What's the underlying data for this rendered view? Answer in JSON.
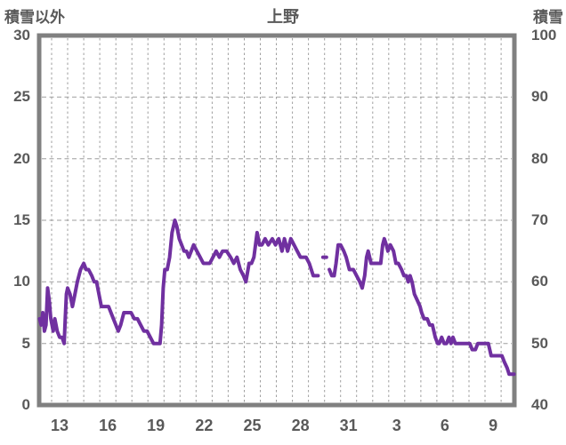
{
  "chart": {
    "title": "上野",
    "left_axis_label": "積雪以外",
    "right_axis_label": "積雪"
  },
  "chart_data": {
    "type": "line",
    "title": "上野",
    "background": "#ffffff",
    "border_color": "#808080",
    "text_color": "#595959",
    "grid": {
      "color": "#9e9e9e",
      "style": "dashed",
      "vertical_per_day": true
    },
    "x_axis": {
      "unit": "day of month",
      "note": "day numbers 13-31 are December, then 3/6/9 are January (continuous day index 34/37/40); one dashed gridline per day",
      "tick_labels": [
        "13",
        "16",
        "19",
        "22",
        "25",
        "28",
        "31",
        "3",
        "6",
        "9"
      ],
      "tick_days": [
        13,
        16,
        19,
        22,
        25,
        28,
        31,
        34,
        37,
        40
      ],
      "range_days": [
        12.224,
        41.827
      ]
    },
    "y_axis_left": {
      "label": "積雪以外",
      "range": [
        0,
        30
      ],
      "ticks": [
        0,
        5,
        10,
        15,
        20,
        25,
        30
      ],
      "tick_labels": [
        "0",
        "5",
        "10",
        "15",
        "20",
        "25",
        "30"
      ]
    },
    "y_axis_right": {
      "label": "積雪",
      "range": [
        40,
        100
      ],
      "ticks": [
        40,
        50,
        60,
        70,
        80,
        90,
        100
      ],
      "tick_labels": [
        "40",
        "50",
        "60",
        "70",
        "80",
        "90",
        "100"
      ]
    },
    "series": [
      {
        "name": "積雪 (snow depth)",
        "axis": "right",
        "unit": "cm",
        "color": "#7030a0",
        "line_width": 4,
        "segments": [
          [
            [
              12.25,
              54
            ],
            [
              12.35,
              53
            ],
            [
              12.45,
              55
            ],
            [
              12.55,
              52
            ],
            [
              12.65,
              53
            ],
            [
              12.75,
              59
            ],
            [
              12.85,
              57
            ],
            [
              12.95,
              54
            ],
            [
              13.1,
              52
            ],
            [
              13.2,
              54
            ],
            [
              13.35,
              52
            ],
            [
              13.5,
              51
            ],
            [
              13.65,
              51
            ],
            [
              13.78,
              50
            ],
            [
              13.85,
              54
            ],
            [
              13.92,
              58
            ],
            [
              14.0,
              59
            ],
            [
              14.15,
              58
            ],
            [
              14.3,
              56
            ],
            [
              14.45,
              58
            ],
            [
              14.6,
              60
            ],
            [
              14.8,
              62
            ],
            [
              15.0,
              63
            ],
            [
              15.15,
              62
            ],
            [
              15.3,
              62
            ],
            [
              15.5,
              61
            ],
            [
              15.65,
              60
            ],
            [
              15.8,
              60
            ],
            [
              15.95,
              58
            ],
            [
              16.1,
              56
            ],
            [
              16.3,
              56
            ],
            [
              16.55,
              56
            ],
            [
              16.7,
              55
            ],
            [
              16.85,
              54
            ],
            [
              17.0,
              53
            ],
            [
              17.15,
              52
            ],
            [
              17.3,
              53
            ],
            [
              17.5,
              55
            ],
            [
              17.75,
              55
            ],
            [
              17.95,
              55
            ],
            [
              18.15,
              54
            ],
            [
              18.35,
              54
            ],
            [
              18.55,
              53
            ],
            [
              18.75,
              52
            ],
            [
              18.95,
              52
            ],
            [
              19.15,
              51
            ],
            [
              19.35,
              50
            ],
            [
              19.55,
              50
            ],
            [
              19.75,
              50
            ],
            [
              19.85,
              53
            ],
            [
              19.95,
              59
            ],
            [
              20.05,
              62
            ],
            [
              20.2,
              62
            ],
            [
              20.35,
              64
            ],
            [
              20.5,
              68
            ],
            [
              20.68,
              70
            ],
            [
              20.8,
              69
            ],
            [
              20.95,
              67
            ],
            [
              21.1,
              66
            ],
            [
              21.25,
              65
            ],
            [
              21.4,
              65
            ],
            [
              21.55,
              64
            ],
            [
              21.7,
              65
            ],
            [
              21.85,
              66
            ],
            [
              22.05,
              65
            ],
            [
              22.25,
              64
            ],
            [
              22.45,
              63
            ],
            [
              22.65,
              63
            ],
            [
              22.85,
              63
            ],
            [
              23.05,
              64
            ],
            [
              23.25,
              65
            ],
            [
              23.45,
              64
            ],
            [
              23.65,
              65
            ],
            [
              23.9,
              65
            ],
            [
              24.15,
              64
            ],
            [
              24.35,
              63
            ],
            [
              24.55,
              64
            ],
            [
              24.75,
              62
            ],
            [
              24.95,
              61
            ],
            [
              25.1,
              60
            ],
            [
              25.3,
              63
            ],
            [
              25.45,
              63
            ],
            [
              25.6,
              64
            ],
            [
              25.8,
              68
            ],
            [
              25.95,
              66
            ],
            [
              26.1,
              66
            ],
            [
              26.3,
              67
            ],
            [
              26.5,
              66
            ],
            [
              26.75,
              67
            ],
            [
              26.95,
              66
            ],
            [
              27.15,
              67
            ],
            [
              27.35,
              65
            ],
            [
              27.5,
              67
            ],
            [
              27.7,
              65
            ],
            [
              27.9,
              67
            ],
            [
              28.1,
              66
            ],
            [
              28.3,
              65
            ],
            [
              28.5,
              64
            ],
            [
              28.7,
              64
            ],
            [
              28.85,
              64
            ],
            [
              29.05,
              63
            ],
            [
              29.3,
              61
            ],
            [
              29.45,
              61
            ],
            [
              29.6,
              61
            ]
          ],
          [
            [
              29.9,
              64
            ],
            [
              30.12,
              64
            ]
          ],
          [
            [
              30.3,
              62
            ],
            [
              30.45,
              61
            ],
            [
              30.6,
              61
            ],
            [
              30.72,
              63
            ],
            [
              30.85,
              66
            ],
            [
              31.0,
              66
            ],
            [
              31.2,
              65
            ],
            [
              31.35,
              64
            ],
            [
              31.55,
              62
            ],
            [
              31.8,
              62
            ],
            [
              32.0,
              61
            ],
            [
              32.2,
              60
            ],
            [
              32.35,
              59
            ],
            [
              32.5,
              61
            ],
            [
              32.62,
              64
            ],
            [
              32.72,
              65
            ],
            [
              32.9,
              63
            ],
            [
              33.1,
              63
            ],
            [
              33.3,
              63
            ],
            [
              33.5,
              63
            ],
            [
              33.62,
              66
            ],
            [
              33.72,
              67
            ],
            [
              33.85,
              66
            ],
            [
              33.95,
              65
            ],
            [
              34.1,
              66
            ],
            [
              34.3,
              65
            ],
            [
              34.45,
              63
            ],
            [
              34.6,
              63
            ],
            [
              34.8,
              62
            ],
            [
              34.95,
              61
            ],
            [
              35.1,
              61
            ],
            [
              35.22,
              60
            ],
            [
              35.33,
              61
            ],
            [
              35.45,
              60
            ],
            [
              35.6,
              58
            ],
            [
              35.78,
              57
            ],
            [
              35.95,
              56
            ],
            [
              36.05,
              55
            ],
            [
              36.2,
              54
            ],
            [
              36.4,
              54
            ],
            [
              36.55,
              53
            ],
            [
              36.72,
              53
            ],
            [
              36.9,
              51
            ],
            [
              37.05,
              50
            ],
            [
              37.15,
              50
            ],
            [
              37.3,
              51
            ],
            [
              37.45,
              50
            ],
            [
              37.6,
              50
            ],
            [
              37.75,
              51
            ],
            [
              37.88,
              50
            ],
            [
              38.0,
              51
            ],
            [
              38.15,
              50
            ],
            [
              38.4,
              50
            ],
            [
              38.6,
              50
            ],
            [
              38.8,
              50
            ],
            [
              39.05,
              50
            ],
            [
              39.2,
              49
            ],
            [
              39.4,
              49
            ],
            [
              39.55,
              50
            ],
            [
              39.8,
              50
            ],
            [
              40.05,
              50
            ],
            [
              40.2,
              50
            ],
            [
              40.38,
              48
            ],
            [
              40.6,
              48
            ],
            [
              40.85,
              48
            ],
            [
              41.05,
              48
            ],
            [
              41.2,
              47
            ],
            [
              41.38,
              46
            ],
            [
              41.5,
              45
            ],
            [
              41.65,
              45
            ],
            [
              41.8,
              45
            ]
          ]
        ]
      }
    ]
  }
}
